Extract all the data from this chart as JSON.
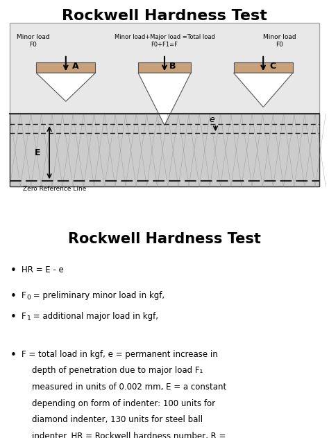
{
  "title1": "Rockwell Hardness Test",
  "title2": "Rockwell Hardness Test",
  "bg_color": "#f0f0f0",
  "diagram_bg": "#e8e8e8",
  "indenter_fill": "#c8a07a",
  "indenter_edge": "#555555",
  "material_fill": "#d8d8d8",
  "material_edge": "#333333",
  "dashed_color": "#222222",
  "arrow_color": "#111111",
  "label_A": "A",
  "label_B": "B",
  "label_C": "C",
  "label_E": "E",
  "label_e": "e",
  "text_minor_load": "Minor load\nF0",
  "text_minor_load2": "Minor load\nF0",
  "text_major_load": "Minor load+Major load =Total load\nF0+F1=F",
  "text_zero_ref": "Zero Reference Line",
  "bullet_lines": [
    "HR = E - e",
    "F₀ = preliminary minor load in kgf,",
    "F₁ = additional major load in kgf,",
    "F = total load in kgf, e = permanent increase in\n    depth of penetration due to major load F₁\n    measured in units of 0.002 mm, E = a constant\n    depending on form of indenter: 100 units for\n    diamond indenter, 130 units for steel ball\n    indenter. HR = Rockwell hardness number, R ="
  ]
}
